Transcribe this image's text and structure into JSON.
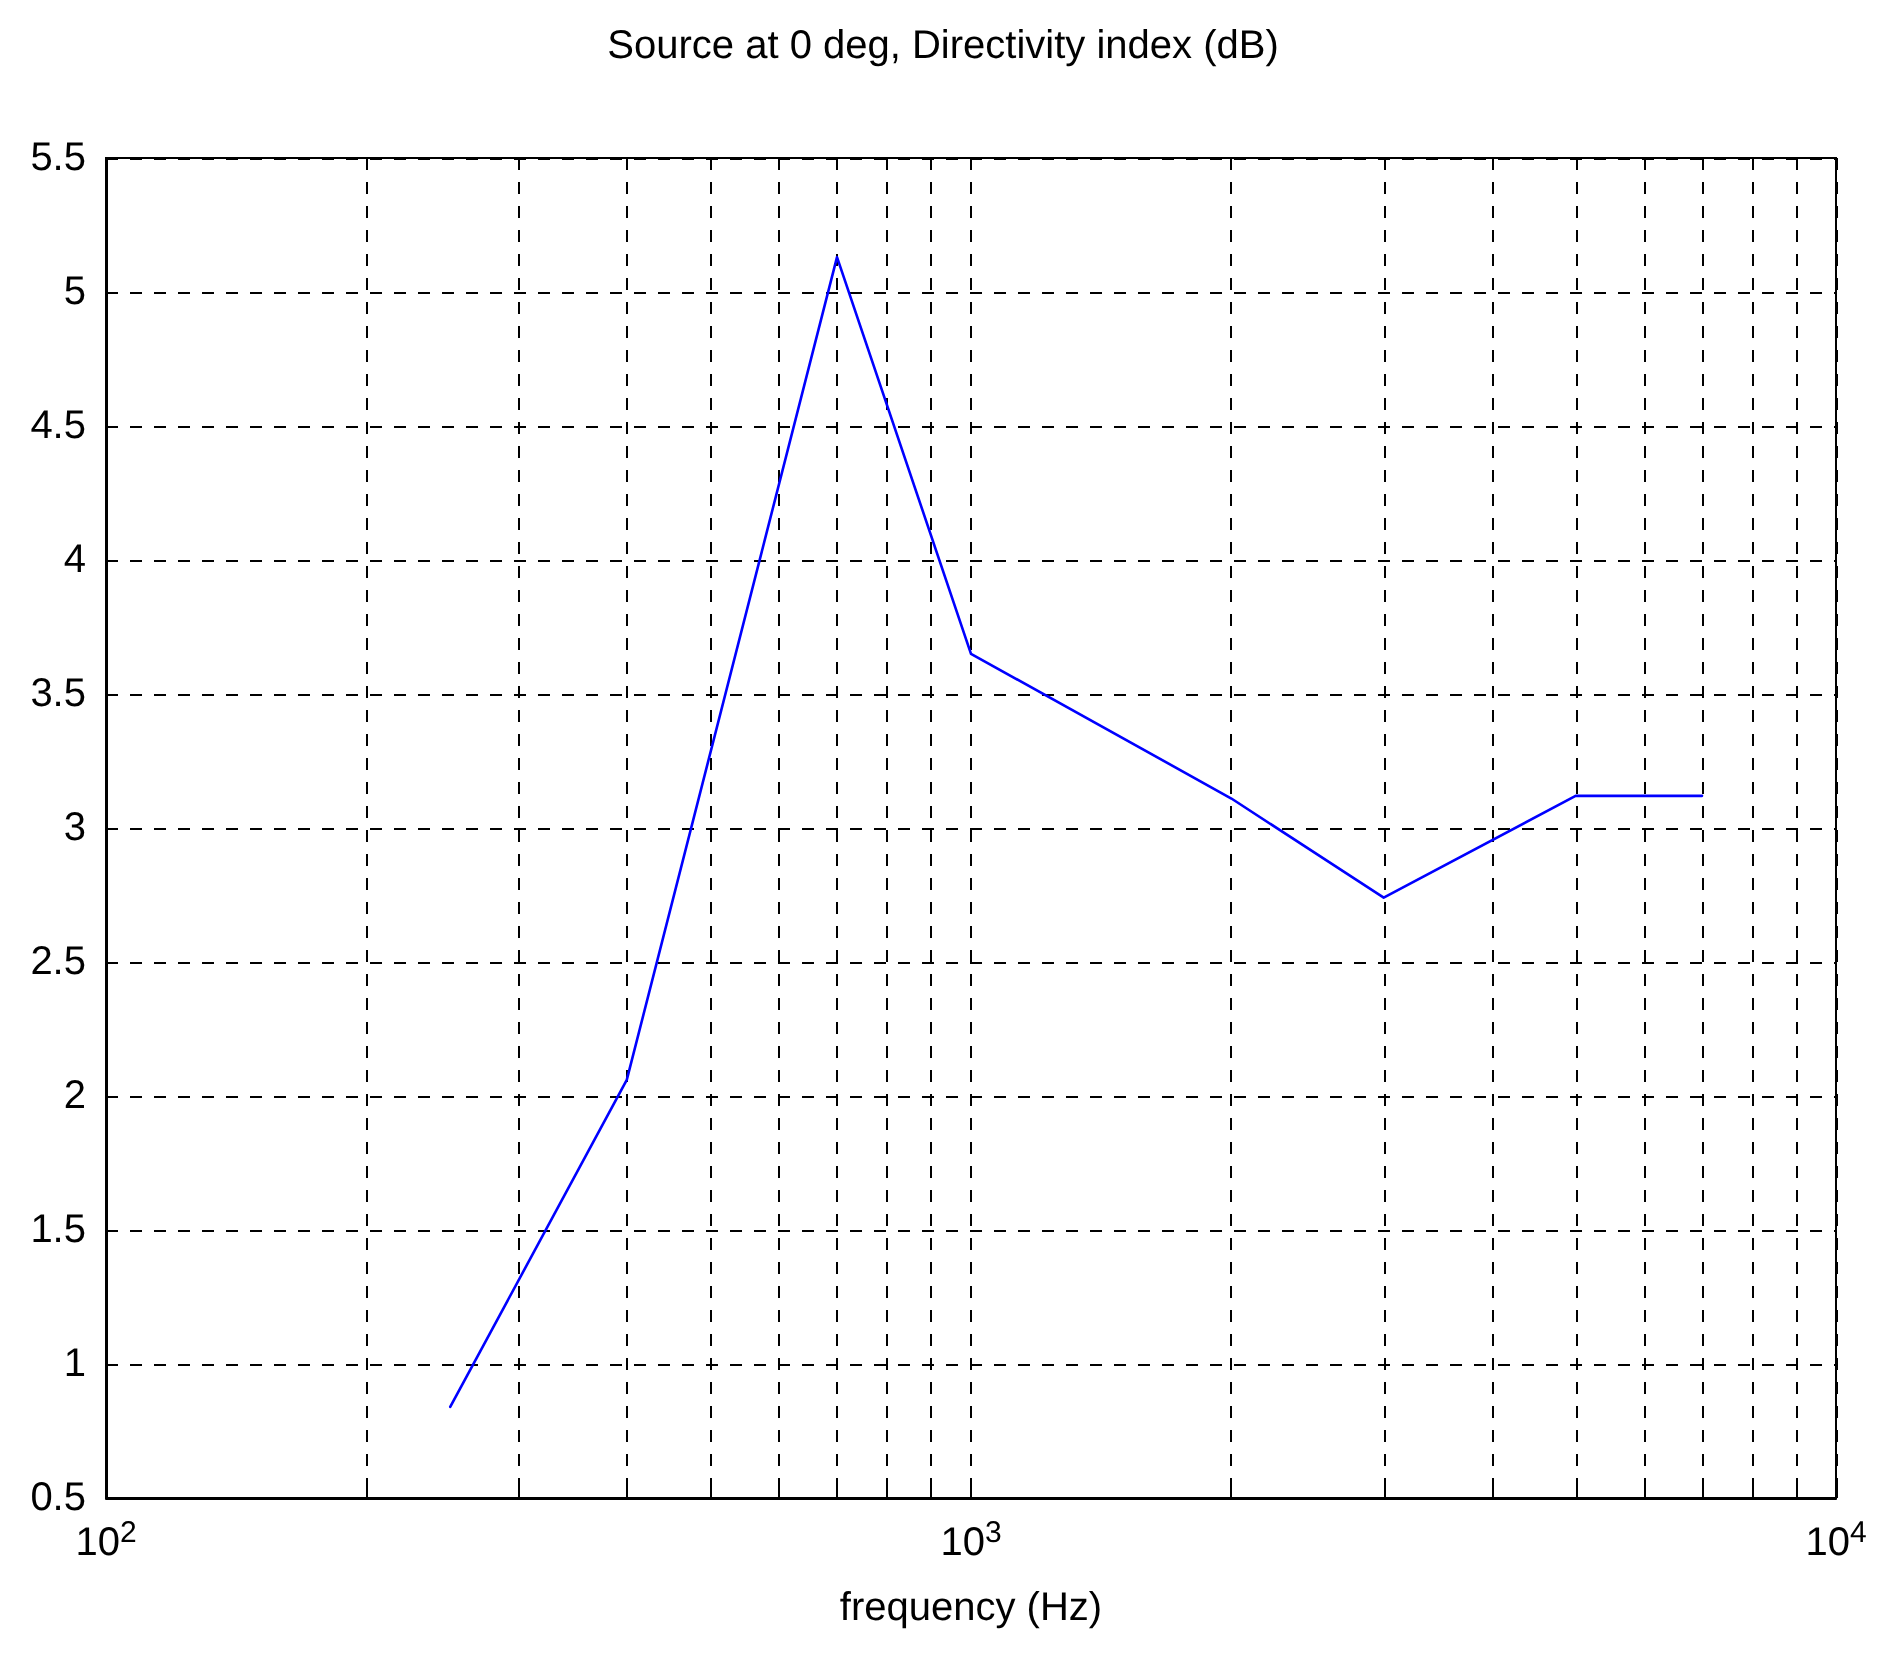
{
  "chart_data": {
    "type": "line",
    "title": "Source at 0 deg, Directivity index (dB)",
    "xlabel": "frequency (Hz)",
    "x": [
      250,
      400,
      700,
      1000,
      2000,
      3000,
      5000,
      7000
    ],
    "series": [
      {
        "color": "#0000ff",
        "values": [
          0.84,
          2.06,
          5.13,
          3.65,
          3.11,
          2.74,
          3.12,
          3.12
        ]
      }
    ],
    "log": "x",
    "xlim": [
      100,
      10000
    ],
    "xticks": [
      {
        "value": 100,
        "label": "10$^{2}$"
      },
      {
        "value": 200,
        "label": null
      },
      {
        "value": 300,
        "label": null
      },
      {
        "value": 400,
        "label": null
      },
      {
        "value": 500,
        "label": null
      },
      {
        "value": 600,
        "label": null
      },
      {
        "value": 700,
        "label": null
      },
      {
        "value": 800,
        "label": null
      },
      {
        "value": 900,
        "label": null
      },
      {
        "value": 1000,
        "label": "10$^{3}$"
      },
      {
        "value": 2000,
        "label": null
      },
      {
        "value": 3000,
        "label": null
      },
      {
        "value": 4000,
        "label": null
      },
      {
        "value": 5000,
        "label": null
      },
      {
        "value": 6000,
        "label": null
      },
      {
        "value": 7000,
        "label": null
      },
      {
        "value": 8000,
        "label": null
      },
      {
        "value": 9000,
        "label": null
      },
      {
        "value": 10000,
        "label": "10$^{4}$"
      }
    ],
    "ylim": [
      0.5,
      5.5
    ],
    "yticks": [
      0.5,
      1,
      1.5,
      2,
      2.5,
      3,
      3.5,
      4,
      4.5,
      5,
      5.5
    ],
    "grid": true,
    "marker": "none",
    "line_style": "solid"
  }
}
